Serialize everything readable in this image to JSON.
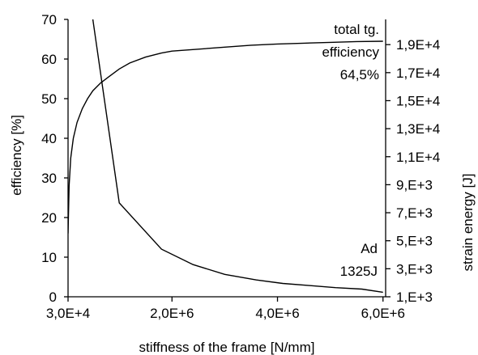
{
  "chart_data": {
    "type": "line",
    "xlabel": "stiffness of the frame [N/mm]",
    "ylabel_left": "efficiency [%]",
    "ylabel_right": "strain energy [J]",
    "x_ticks": [
      30000,
      2000000,
      4000000,
      6000000
    ],
    "x_tick_labels": [
      "3,0E+4",
      "2,0E+6",
      "4,0E+6",
      "6,0E+6"
    ],
    "xlim": [
      30000,
      6050000
    ],
    "y_left_ticks": [
      0,
      10,
      20,
      30,
      40,
      50,
      60,
      70
    ],
    "y_left_tick_labels": [
      "0",
      "10",
      "20",
      "30",
      "40",
      "50",
      "60",
      "70"
    ],
    "ylim_left": [
      0,
      70
    ],
    "y_right_ticks": [
      1000,
      3000,
      5000,
      7000,
      9000,
      11000,
      13000,
      15000,
      17000,
      19000
    ],
    "y_right_tick_labels": [
      "1,E+3",
      "3,E+3",
      "5,E+3",
      "7,E+3",
      "9,E+3",
      "1,1E+4",
      "1,3E+4",
      "1,5E+4",
      "1,7E+4",
      "1,9E+4"
    ],
    "ylim_right": [
      1000,
      20800
    ],
    "grid": false,
    "series": [
      {
        "axis": "left",
        "x": [
          30000,
          50000,
          80000,
          130000,
          200000,
          300000,
          400000,
          500000,
          650000,
          800000,
          1000000,
          1200000,
          1500000,
          1800000,
          2000000,
          2500000,
          3000000,
          3500000,
          4000000,
          4500000,
          5000000,
          5500000,
          6000000
        ],
        "values": [
          16,
          28,
          35,
          40,
          44,
          47.5,
          50,
          52,
          54,
          55.5,
          57.5,
          59,
          60.5,
          61.5,
          62,
          62.5,
          63,
          63.5,
          63.8,
          64,
          64.2,
          64.4,
          64.5
        ]
      },
      {
        "axis": "right",
        "x": [
          500000,
          1000000,
          1800000,
          2400000,
          3000000,
          3600000,
          4100000,
          4600000,
          5100000,
          5600000,
          6000000
        ],
        "values": [
          20800,
          7700,
          4400,
          3300,
          2600,
          2200,
          1950,
          1800,
          1650,
          1550,
          1325
        ]
      }
    ],
    "annotations": [
      {
        "lines": [
          "total tg.",
          "efficiency",
          "64,5%"
        ]
      },
      {
        "lines": [
          "Ad",
          "1325J"
        ]
      }
    ]
  }
}
